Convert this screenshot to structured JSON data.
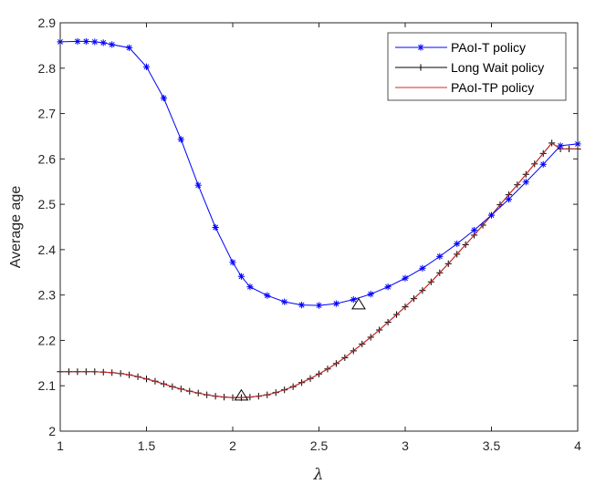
{
  "chart_data": {
    "type": "line",
    "title": "",
    "xlabel": "λ",
    "ylabel": "Average age",
    "xlim": [
      1,
      4
    ],
    "ylim": [
      2,
      2.9
    ],
    "xticks": [
      1,
      1.5,
      2,
      2.5,
      3,
      3.5,
      4
    ],
    "xtick_labels": [
      "1",
      "1.5",
      "2",
      "2.5",
      "3",
      "3.5",
      "4"
    ],
    "yticks": [
      2,
      2.1,
      2.2,
      2.3,
      2.4,
      2.5,
      2.6,
      2.7,
      2.8,
      2.9
    ],
    "ytick_labels": [
      "2",
      "2.1",
      "2.2",
      "2.3",
      "2.4",
      "2.5",
      "2.6",
      "2.7",
      "2.8",
      "2.9"
    ],
    "grid": false,
    "legend_position": "top-right",
    "x": [
      1.0,
      1.05,
      1.1,
      1.15,
      1.2,
      1.25,
      1.3,
      1.35,
      1.4,
      1.45,
      1.5,
      1.55,
      1.6,
      1.65,
      1.7,
      1.75,
      1.8,
      1.85,
      1.9,
      1.95,
      2.0,
      2.05,
      2.1,
      2.15,
      2.2,
      2.25,
      2.3,
      2.35,
      2.4,
      2.45,
      2.5,
      2.55,
      2.6,
      2.65,
      2.7,
      2.75,
      2.8,
      2.85,
      2.9,
      2.95,
      3.0,
      3.05,
      3.1,
      3.15,
      3.2,
      3.25,
      3.3,
      3.35,
      3.4,
      3.45,
      3.5,
      3.55,
      3.6,
      3.65,
      3.7,
      3.75,
      3.8,
      3.85,
      3.9,
      3.95,
      4.0
    ],
    "series": [
      {
        "name": "PAoI-T policy",
        "color": "#0000ff",
        "marker": "asterisk",
        "x": [
          1.0,
          1.1,
          1.15,
          1.2,
          1.25,
          1.3,
          1.4,
          1.5,
          1.6,
          1.7,
          1.8,
          1.9,
          2.0,
          2.05,
          2.1,
          2.2,
          2.3,
          2.4,
          2.5,
          2.6,
          2.7,
          2.8,
          2.9,
          3.0,
          3.1,
          3.2,
          3.3,
          3.4,
          3.5,
          3.6,
          3.7,
          3.8,
          3.9,
          4.0
        ],
        "values": [
          2.858,
          2.859,
          2.859,
          2.858,
          2.856,
          2.852,
          2.845,
          2.803,
          2.734,
          2.643,
          2.542,
          2.449,
          2.372,
          2.341,
          2.318,
          2.299,
          2.285,
          2.278,
          2.277,
          2.281,
          2.29,
          2.302,
          2.318,
          2.337,
          2.359,
          2.385,
          2.413,
          2.443,
          2.476,
          2.511,
          2.549,
          2.588,
          2.629,
          2.633
        ]
      },
      {
        "name": "Long Wait policy",
        "color": "#000000",
        "marker": "plus",
        "values": [
          2.131,
          2.131,
          2.131,
          2.131,
          2.131,
          2.13,
          2.129,
          2.127,
          2.124,
          2.12,
          2.115,
          2.11,
          2.104,
          2.098,
          2.093,
          2.088,
          2.084,
          2.08,
          2.077,
          2.075,
          2.074,
          2.074,
          2.075,
          2.077,
          2.08,
          2.085,
          2.091,
          2.098,
          2.107,
          2.116,
          2.126,
          2.137,
          2.149,
          2.162,
          2.177,
          2.192,
          2.207,
          2.223,
          2.24,
          2.257,
          2.274,
          2.292,
          2.31,
          2.329,
          2.349,
          2.369,
          2.39,
          2.411,
          2.432,
          2.454,
          2.476,
          2.499,
          2.521,
          2.543,
          2.566,
          2.589,
          2.612,
          2.635,
          2.622,
          2.622,
          2.622
        ]
      },
      {
        "name": "PAoI-TP policy",
        "color": "#d62728",
        "marker": "none",
        "values": [
          2.131,
          2.131,
          2.131,
          2.131,
          2.131,
          2.13,
          2.129,
          2.127,
          2.124,
          2.12,
          2.115,
          2.11,
          2.104,
          2.098,
          2.093,
          2.088,
          2.084,
          2.08,
          2.077,
          2.075,
          2.074,
          2.074,
          2.075,
          2.077,
          2.08,
          2.085,
          2.091,
          2.098,
          2.107,
          2.116,
          2.126,
          2.137,
          2.149,
          2.162,
          2.177,
          2.192,
          2.207,
          2.223,
          2.24,
          2.257,
          2.274,
          2.292,
          2.31,
          2.329,
          2.349,
          2.369,
          2.39,
          2.411,
          2.432,
          2.454,
          2.476,
          2.499,
          2.521,
          2.543,
          2.566,
          2.589,
          2.612,
          2.635,
          2.622,
          2.622,
          2.622
        ]
      }
    ],
    "annotations": [
      {
        "type": "triangle-marker",
        "x": 2.73,
        "y": 2.278
      },
      {
        "type": "triangle-marker",
        "x": 2.05,
        "y": 2.077
      }
    ]
  }
}
